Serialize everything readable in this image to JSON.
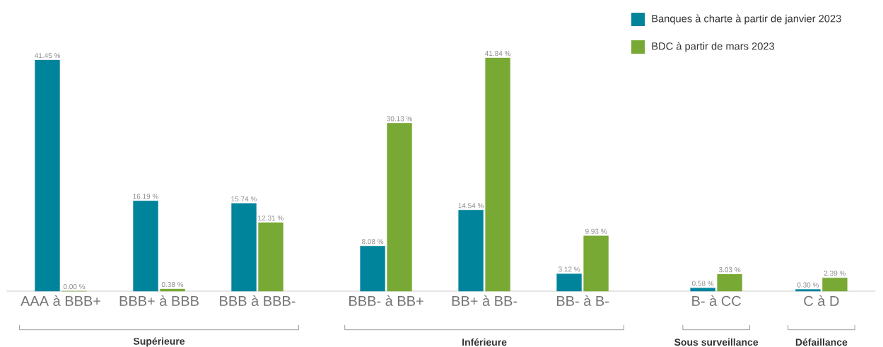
{
  "chart_data": {
    "type": "bar",
    "categories": [
      "AAA à BBB+",
      "BBB+ à BBB",
      "BBB à BBB-",
      "BBB- à BB+",
      "BB+ à BB-",
      "BB- à B-",
      "B- à CC",
      "C à D"
    ],
    "series": [
      {
        "name": "Banques à charte à partir de janvier 2023",
        "color": "#00849c",
        "values": [
          41.45,
          16.19,
          15.74,
          8.08,
          14.54,
          3.12,
          0.58,
          0.3
        ],
        "value_labels": [
          "41.45 %",
          "16.19 %",
          "15.74 %",
          "8.08 %",
          "14.54 %",
          "3.12 %",
          "0.58 %",
          "0.30 %"
        ]
      },
      {
        "name": "BDC à partir de mars 2023",
        "color": "#78a935",
        "values": [
          0.0,
          0.38,
          12.31,
          30.13,
          41.84,
          9.93,
          3.03,
          2.39
        ],
        "value_labels": [
          "0.00 %",
          "0.38 %",
          "12.31 %",
          "30.13 %",
          "41.84 %",
          "9.93 %",
          "3.03 %",
          "2.39 %"
        ]
      }
    ],
    "annotations": [
      "Supérieure",
      "Inférieure",
      "Sous surveillance",
      "Défaillance"
    ],
    "legend": "top right",
    "grid": false
  }
}
